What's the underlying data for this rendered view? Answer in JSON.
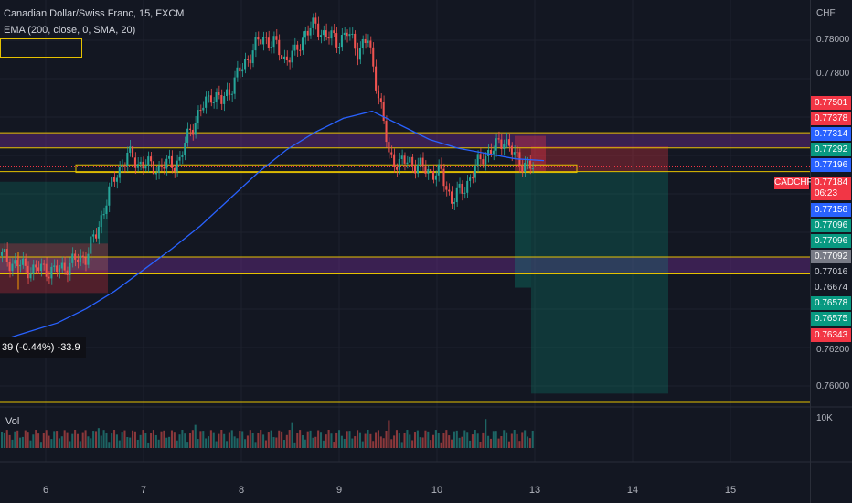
{
  "header": {
    "title": "Canadian Dollar/Swiss Franc, 15, FXCM",
    "indicator": "EMA (200, close, 0, SMA, 20)"
  },
  "colors": {
    "bg": "#131722",
    "up": "#26a69a",
    "down": "#ef5350",
    "ema": "#2962ff",
    "level": "#e6c200",
    "zone": "#6a2c8c",
    "red_box": "#f23645",
    "green_box": "#089981"
  },
  "price_scale": {
    "currency": "CHF",
    "labels": [
      "0.78000",
      "0.77800",
      "0.76200",
      "0.76000"
    ],
    "tags": [
      {
        "text": "0.77501",
        "color": "#f23645"
      },
      {
        "text": "0.77378",
        "color": "#f23645"
      },
      {
        "text": "0.77314",
        "color": "#2962ff"
      },
      {
        "text": "0.77292",
        "color": "#089981"
      },
      {
        "text": "0.77196",
        "color": "#2962ff"
      },
      {
        "text": "0.77158",
        "color": "#2962ff"
      },
      {
        "text": "0.77096",
        "color": "#089981"
      },
      {
        "text": "0.77096",
        "color": "#089981"
      },
      {
        "text": "0.77092",
        "color": "#787b86"
      },
      {
        "text": "0.77016",
        "color": "#131722"
      },
      {
        "text": "0.76674",
        "color": "#131722"
      },
      {
        "text": "0.76578",
        "color": "#089981"
      },
      {
        "text": "0.76575",
        "color": "#089981"
      },
      {
        "text": "0.76343",
        "color": "#f23645"
      }
    ],
    "current_price": "0.77184",
    "countdown": "06:23",
    "symbol": "CADCHF",
    "volume_label": "10K"
  },
  "measure_label": "39 (-0.44%) -33.9",
  "volume_title": "Vol",
  "time_axis": [
    "6",
    "7",
    "8",
    "9",
    "10",
    "13",
    "14",
    "15"
  ],
  "chart_data": {
    "type": "candlestick",
    "symbol": "CADCHF",
    "interval": "15",
    "x_sessions": [
      "6",
      "7",
      "8",
      "9",
      "10",
      "13",
      "14",
      "15"
    ],
    "ylim": [
      0.7585,
      0.7813
    ],
    "close_series": [
      0.7668,
      0.7664,
      0.7662,
      0.766,
      0.7661,
      0.7659,
      0.7662,
      0.7665,
      0.7668,
      0.768,
      0.77,
      0.7715,
      0.7725,
      0.7721,
      0.7719,
      0.7718,
      0.772,
      0.7722,
      0.774,
      0.775,
      0.776,
      0.7755,
      0.7765,
      0.7775,
      0.7785,
      0.7792,
      0.7788,
      0.778,
      0.7782,
      0.7795,
      0.7798,
      0.7793,
      0.779,
      0.7794,
      0.7785,
      0.779,
      0.776,
      0.7725,
      0.772,
      0.7722,
      0.7718,
      0.7716,
      0.7714,
      0.77,
      0.7705,
      0.7715,
      0.7725,
      0.7728,
      0.7735,
      0.7724,
      0.772,
      0.7716
    ],
    "ema_200": [
      0.762,
      0.7625,
      0.763,
      0.7638,
      0.7648,
      0.766,
      0.7672,
      0.7685,
      0.77,
      0.7715,
      0.7728,
      0.7738,
      0.7746,
      0.775,
      0.7742,
      0.7734,
      0.7729,
      0.7726,
      0.7723,
      0.7722
    ],
    "levels": [
      0.77378,
      0.77292,
      0.77158,
      0.76674,
      0.76578,
      0.7585
    ],
    "current_price": 0.77184,
    "volume_max": "10K"
  }
}
